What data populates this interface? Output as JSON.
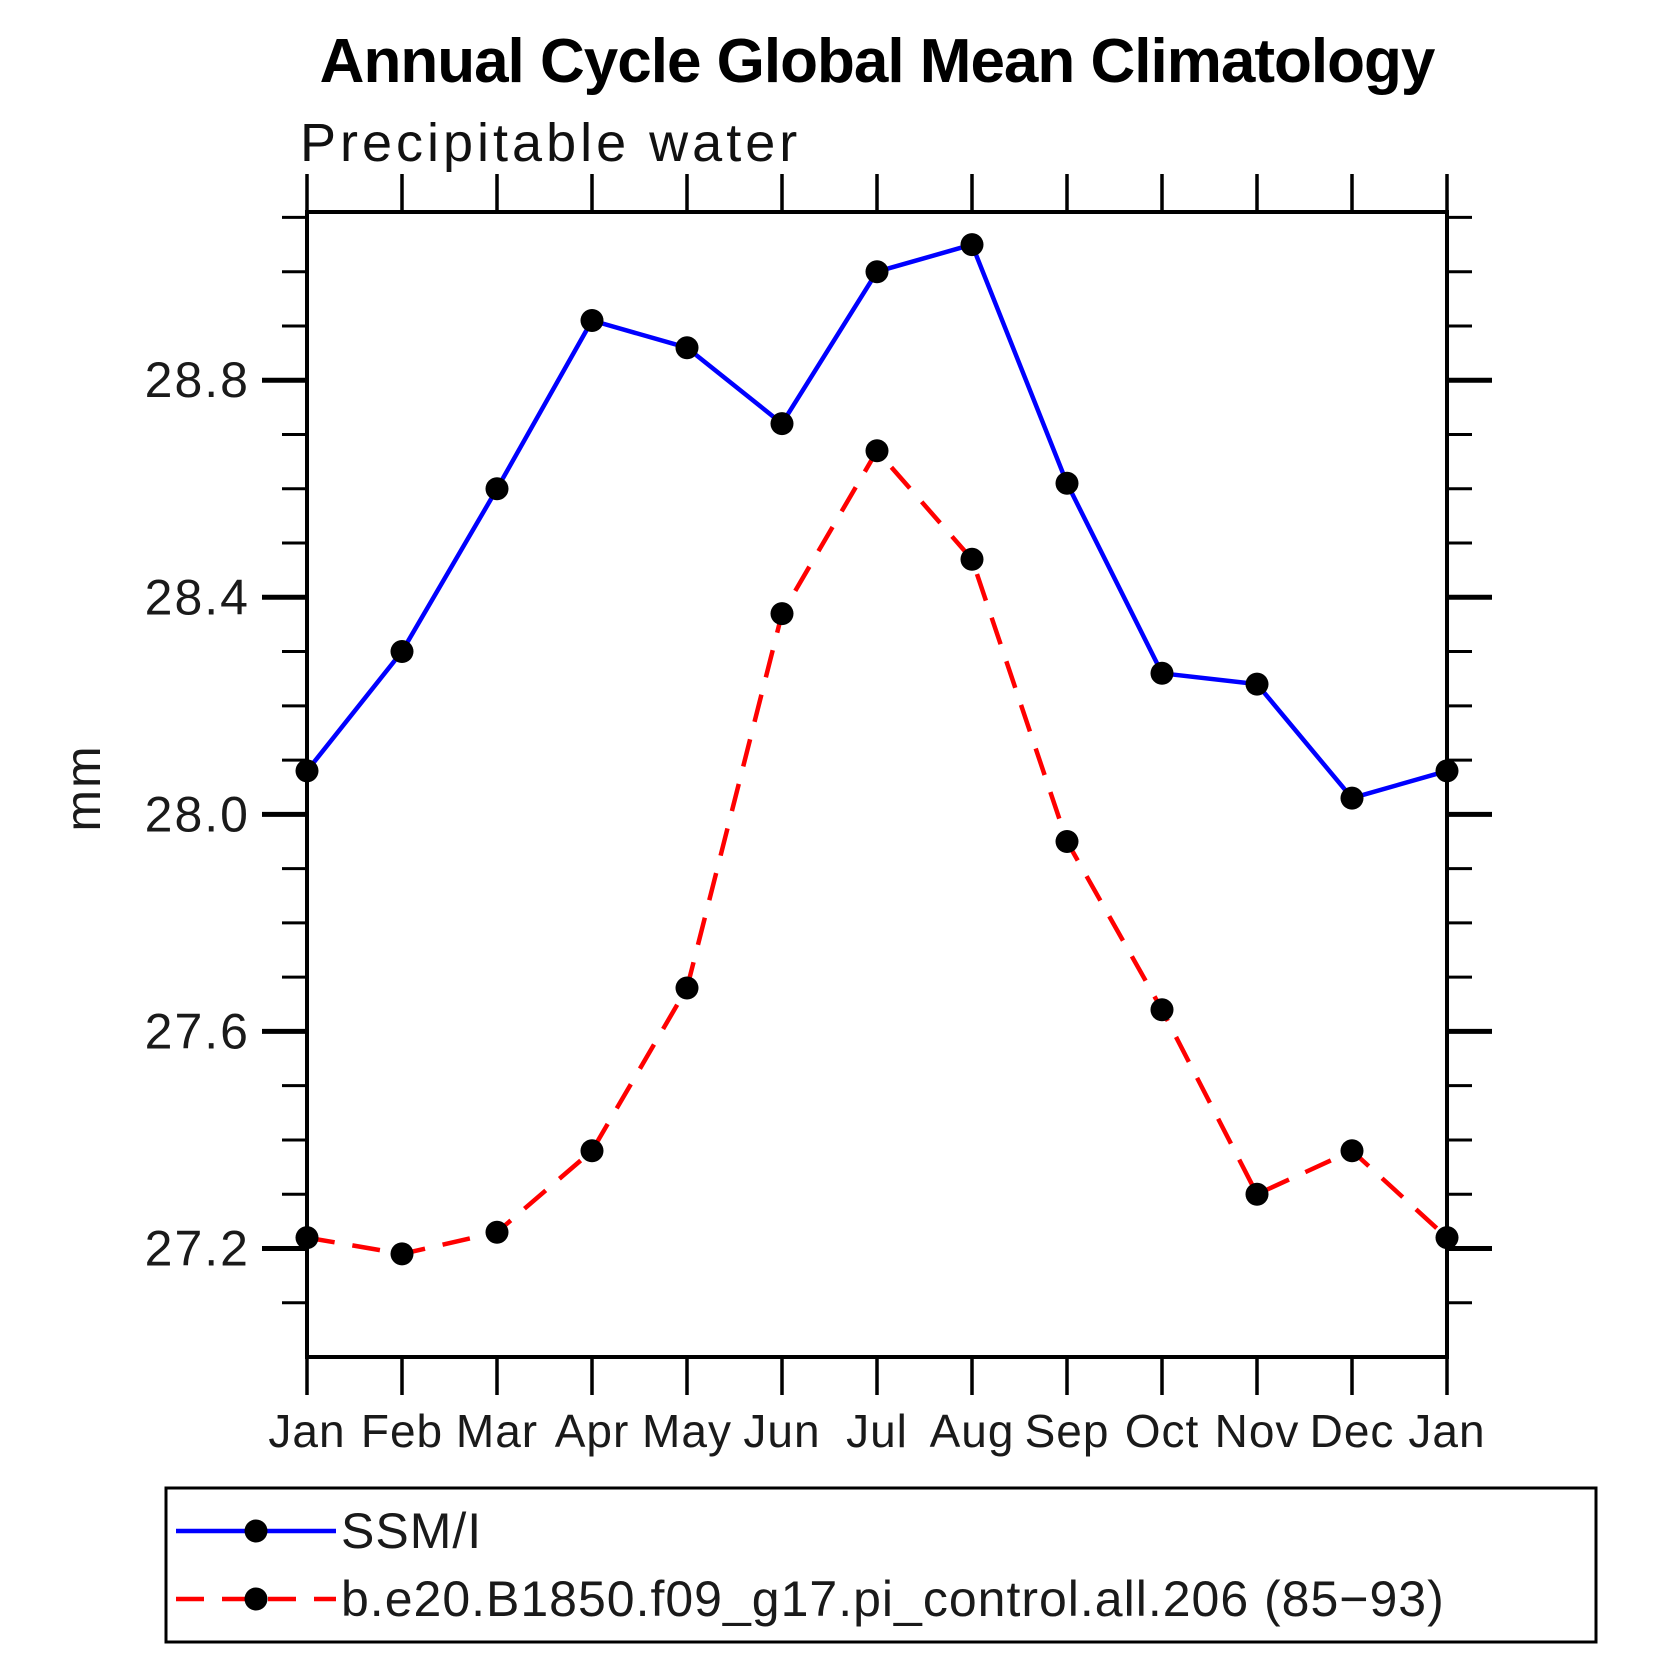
{
  "title": "Annual Cycle Global Mean Climatology",
  "subtitle": "Precipitable water",
  "chart_data": {
    "type": "line",
    "title": "Annual Cycle Global Mean Climatology",
    "subtitle": "Precipitable water",
    "xlabel": "",
    "ylabel": "mm",
    "categories": [
      "Jan",
      "Feb",
      "Mar",
      "Apr",
      "May",
      "Jun",
      "Jul",
      "Aug",
      "Sep",
      "Oct",
      "Nov",
      "Dec",
      "Jan"
    ],
    "ylim": [
      27.0,
      29.11
    ],
    "y_major_ticks": [
      27.2,
      27.6,
      28.0,
      28.4,
      28.8
    ],
    "y_major_tick_labels": [
      "27.2",
      "27.6",
      "28.0",
      "28.4",
      "28.8"
    ],
    "y_minor_step": 0.1,
    "grid": false,
    "legend_position": "bottom",
    "marker": "filled-circle",
    "marker_color": "#000000",
    "series": [
      {
        "name": "SSM/I",
        "color": "#0000ff",
        "style": "solid",
        "values": [
          28.08,
          28.3,
          28.6,
          28.91,
          28.86,
          28.72,
          29.0,
          29.05,
          28.61,
          28.26,
          28.24,
          28.03,
          28.08
        ]
      },
      {
        "name": "b.e20.B1850.f09_g17.pi_control.all.206 (85−93)",
        "color": "#ff0000",
        "style": "dashed",
        "values": [
          27.22,
          27.19,
          27.23,
          27.38,
          27.68,
          28.37,
          28.67,
          28.47,
          27.95,
          27.64,
          27.3,
          27.38,
          27.22
        ]
      }
    ]
  },
  "legend": {
    "entries": [
      {
        "label": "SSM/I",
        "color": "#0000ff",
        "style": "solid"
      },
      {
        "label": "b.e20.B1850.f09_g17.pi_control.all.206 (85−93)",
        "color": "#ff0000",
        "style": "dashed"
      }
    ]
  }
}
